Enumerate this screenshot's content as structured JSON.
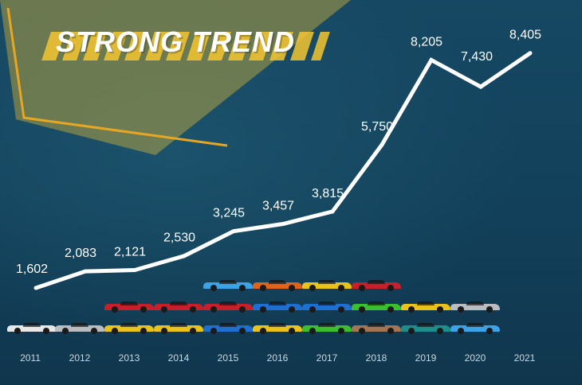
{
  "title": "STRONG TREND",
  "colors": {
    "line": "#ffffff",
    "accent": "#f4c430",
    "background": "#12405a"
  },
  "chart_data": {
    "type": "line",
    "x": [
      "2011",
      "2012",
      "2013",
      "2014",
      "2015",
      "2016",
      "2017",
      "2018",
      "2019",
      "2020",
      "2021"
    ],
    "values": [
      1602,
      2083,
      2121,
      2530,
      3245,
      3457,
      3815,
      5750,
      8205,
      7430,
      8405
    ],
    "value_labels": [
      "1,602",
      "2,083",
      "2,121",
      "2,530",
      "3,245",
      "3,457",
      "3,815",
      "5,750",
      "8,205",
      "7,430",
      "8,405"
    ],
    "title": "STRONG TREND",
    "xlabel": "",
    "ylabel": "",
    "grid": false,
    "legend": "none"
  },
  "cars": [
    [
      "white"
    ],
    [
      "silver"
    ],
    [
      "yellow",
      "red"
    ],
    [
      "yellow",
      "red"
    ],
    [
      "blue",
      "red",
      "light-blue"
    ],
    [
      "yellow",
      "blue",
      "orange"
    ],
    [
      "green",
      "blue",
      "yellow"
    ],
    [
      "copper",
      "green",
      "red"
    ],
    [
      "teal",
      "yellow"
    ],
    [
      "light-blue",
      "silver"
    ]
  ],
  "car_colors": {
    "white": "#e8e8e8",
    "silver": "#b9bcc0",
    "yellow": "#e9c21a",
    "red": "#c8202a",
    "blue": "#1f6fd1",
    "light-blue": "#3aa4e6",
    "orange": "#e0631c",
    "green": "#3bbf2e",
    "copper": "#a27654",
    "teal": "#1c8f8c"
  }
}
